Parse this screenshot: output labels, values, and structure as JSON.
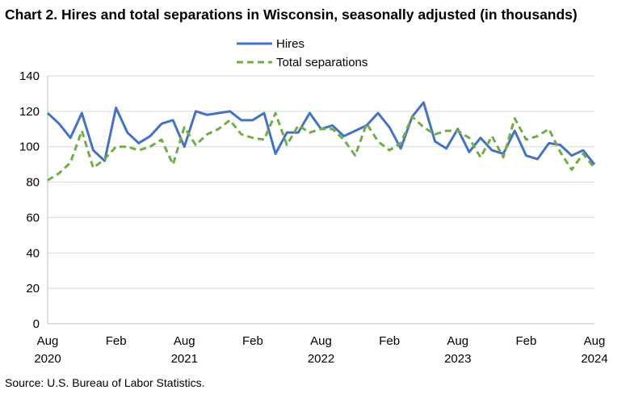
{
  "chart_data": {
    "type": "line",
    "title": "Chart 2. Hires and total separations in Wisconsin, seasonally adjusted (in thousands)",
    "source": "Source: U.S. Bureau of Labor Statistics.",
    "ylim": [
      0,
      140
    ],
    "yticks": [
      0,
      20,
      40,
      60,
      80,
      100,
      120,
      140
    ],
    "grid": true,
    "legend_position": "top-center",
    "x_tick_labels": [
      {
        "month": "Aug",
        "year": "2020",
        "index": 0
      },
      {
        "month": "Feb",
        "year": "",
        "index": 6
      },
      {
        "month": "Aug",
        "year": "2021",
        "index": 12
      },
      {
        "month": "Feb",
        "year": "",
        "index": 18
      },
      {
        "month": "Aug",
        "year": "2022",
        "index": 24
      },
      {
        "month": "Feb",
        "year": "",
        "index": 30
      },
      {
        "month": "Aug",
        "year": "2023",
        "index": 36
      },
      {
        "month": "Feb",
        "year": "",
        "index": 42
      },
      {
        "month": "Aug",
        "year": "2024",
        "index": 48
      }
    ],
    "x": [
      "2020-08",
      "2020-09",
      "2020-10",
      "2020-11",
      "2020-12",
      "2021-01",
      "2021-02",
      "2021-03",
      "2021-04",
      "2021-05",
      "2021-06",
      "2021-07",
      "2021-08",
      "2021-09",
      "2021-10",
      "2021-11",
      "2021-12",
      "2022-01",
      "2022-02",
      "2022-03",
      "2022-04",
      "2022-05",
      "2022-06",
      "2022-07",
      "2022-08",
      "2022-09",
      "2022-10",
      "2022-11",
      "2022-12",
      "2023-01",
      "2023-02",
      "2023-03",
      "2023-04",
      "2023-05",
      "2023-06",
      "2023-07",
      "2023-08",
      "2023-09",
      "2023-10",
      "2023-11",
      "2023-12",
      "2024-01",
      "2024-02",
      "2024-03",
      "2024-04",
      "2024-05",
      "2024-06",
      "2024-07",
      "2024-08"
    ],
    "series": [
      {
        "name": "Hires",
        "color": "#4472C4",
        "dash": "solid",
        "values": [
          119,
          113,
          105,
          119,
          98,
          92,
          122,
          108,
          102,
          106,
          113,
          115,
          100,
          120,
          118,
          119,
          120,
          115,
          115,
          119,
          96,
          108,
          108,
          119,
          110,
          112,
          106,
          109,
          112,
          119,
          111,
          99,
          117,
          125,
          103,
          99,
          110,
          97,
          105,
          98,
          96,
          109,
          95,
          93,
          102,
          101,
          95,
          98,
          90
        ]
      },
      {
        "name": "Total separations",
        "color": "#70AD47",
        "dash": "dashed",
        "values": [
          81,
          85,
          91,
          109,
          88,
          93,
          100,
          100,
          98,
          100,
          104,
          90,
          111,
          101,
          107,
          110,
          115,
          107,
          105,
          104,
          119,
          101,
          112,
          108,
          110,
          110,
          104,
          95,
          113,
          103,
          98,
          102,
          117,
          111,
          107,
          109,
          109,
          105,
          94,
          106,
          94,
          116,
          104,
          106,
          110,
          97,
          87,
          96,
          88
        ]
      }
    ]
  }
}
